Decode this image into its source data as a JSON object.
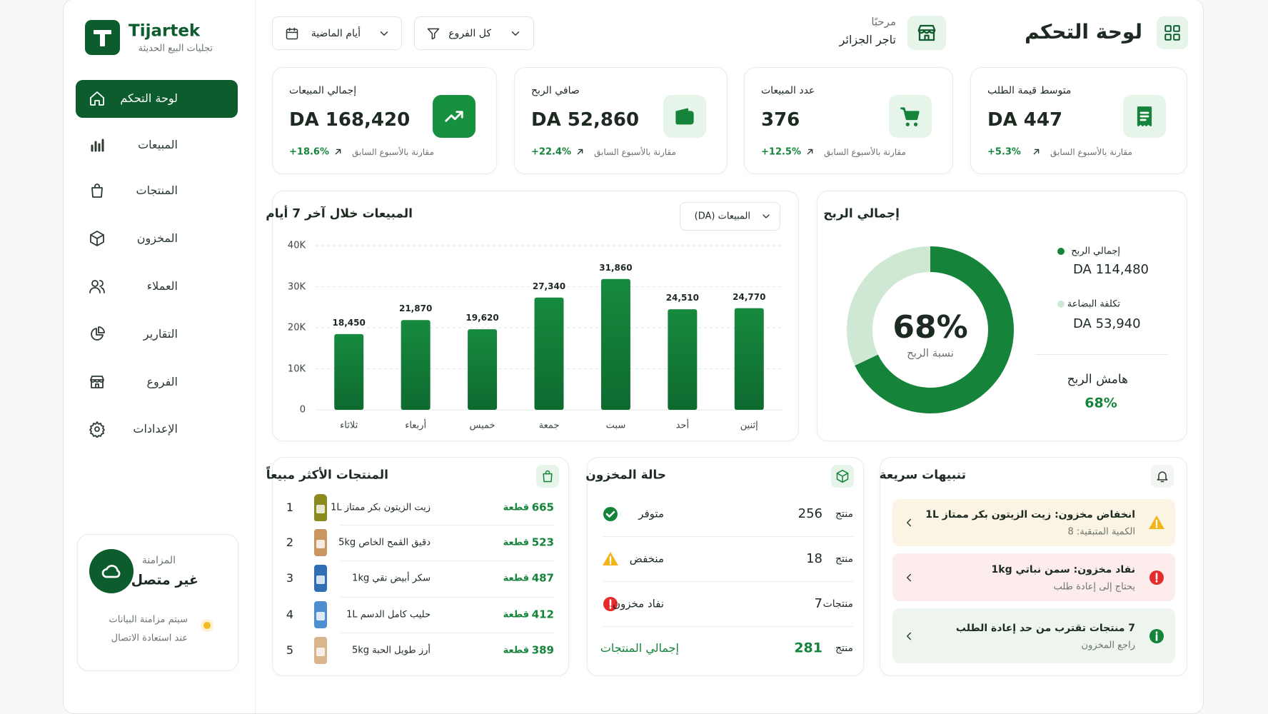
{
  "brand": {
    "name": "Tijartek",
    "tagline": "تجليات البيع الحديثة"
  },
  "header": {
    "title": "لوحة التحكم",
    "greeting": "مرحبًا",
    "merchant": "تاجر الجزائر",
    "branch_filter": "كل الفروع",
    "period_filter": "أيام الماضية"
  },
  "nav": [
    "لوحة التحكم",
    "المبيعات",
    "المنتجات",
    "المخزون",
    "العملاء",
    "التقارير",
    "الفروع",
    "الإعدادات"
  ],
  "sync": {
    "label": "المزامنة",
    "status": "غير متصل",
    "note_lines": [
      "سيتم مزامنة البيانات",
      "عند استعادة الاتصال"
    ]
  },
  "kpis": [
    {
      "label": "متوسط قيمة الطلب",
      "value": "DA 447",
      "change": "+5.3%",
      "compare": "مقارنة بالأسبوع السابق"
    },
    {
      "label": "عدد المبيعات",
      "value": "376",
      "change": "+12.5%",
      "compare": "مقارنة بالأسبوع السابق"
    },
    {
      "label": "صافي الربح",
      "value": "DA 52,860",
      "change": "+22.4%",
      "compare": "مقارنة بالأسبوع السابق"
    },
    {
      "label": "إجمالي المبيعات",
      "value": "DA 168,420",
      "change": "+18.6%",
      "compare": "مقارنة بالأسبوع السابق"
    }
  ],
  "chart_data": [
    {
      "type": "bar",
      "title": "المبيعات خلال آخر 7 أيام",
      "dropdown": "المبيعات (DA)",
      "categories": [
        "إثنين",
        "أحد",
        "سبت",
        "جمعة",
        "خميس",
        "أربعاء",
        "ثلاثاء"
      ],
      "values": [
        24770,
        24510,
        31860,
        27340,
        19620,
        21870,
        18450
      ],
      "value_labels": [
        "24,770",
        "24,510",
        "31,860",
        "27,340",
        "19,620",
        "21,870",
        "18,450"
      ],
      "color": "#178a3f",
      "ylim": [
        0,
        40000
      ],
      "yticks": [
        0,
        {
          "value": 10000,
          "label": "10K"
        },
        {
          "value": 20000,
          "label": "20K"
        },
        {
          "value": 30000,
          "label": "30K"
        },
        {
          "value": 40000,
          "label": "40K"
        }
      ],
      "grid": true
    },
    {
      "type": "pie",
      "title": "إجمالي الربح",
      "categories": [
        "إجمالي الربح",
        "تكلفة البضاعة"
      ],
      "values": [
        114480,
        53940
      ],
      "value_labels": [
        "DA 114,480",
        "DA 53,940"
      ],
      "colors": [
        "#15843a",
        "#cfe8d3"
      ],
      "center_label": "68%",
      "center_caption": "نسبة الربح",
      "margin_label": "هامش الربح",
      "margin_value": "68%"
    }
  ],
  "top_products": {
    "title": "المنتجات الأكثر مبيعاً",
    "unit": "قطعة",
    "rows": [
      {
        "rank": 1,
        "name": "زيت الزيتون بكر ممتاز 1L",
        "qty": 665
      },
      {
        "rank": 2,
        "name": "دقيق القمح الخاص 5kg",
        "qty": 523
      },
      {
        "rank": 3,
        "name": "سكر أبيض نقي 1kg",
        "qty": 487
      },
      {
        "rank": 4,
        "name": "حليب كامل الدسم 1L",
        "qty": 412
      },
      {
        "rank": 5,
        "name": "أرز طويل الحبة 5kg",
        "qty": 389
      }
    ]
  },
  "stock": {
    "title": "حالة المخزون",
    "rows": [
      {
        "label": "متوفر",
        "count": 256,
        "unit": "منتج"
      },
      {
        "label": "منخفض",
        "count": 18,
        "unit": "منتج"
      },
      {
        "label": "نفاد مخزون",
        "count": 7,
        "unit": "منتجات"
      }
    ],
    "total": {
      "label": "إجمالي المنتجات",
      "count": 281,
      "unit": "منتج"
    }
  },
  "alerts": {
    "title": "تنبيهات سريعة",
    "items": [
      {
        "title": "انخفاض مخزون: زيت الزيتون بكر ممتاز 1L",
        "detail": "الكمية المتبقية: 8"
      },
      {
        "title": "نفاد مخزون: سمن نباتي 1kg",
        "detail": "يحتاج إلى إعادة طلب"
      },
      {
        "title": "7 منتجات تقترب من حد إعادة الطلب",
        "detail": "راجع المخزون"
      }
    ]
  }
}
